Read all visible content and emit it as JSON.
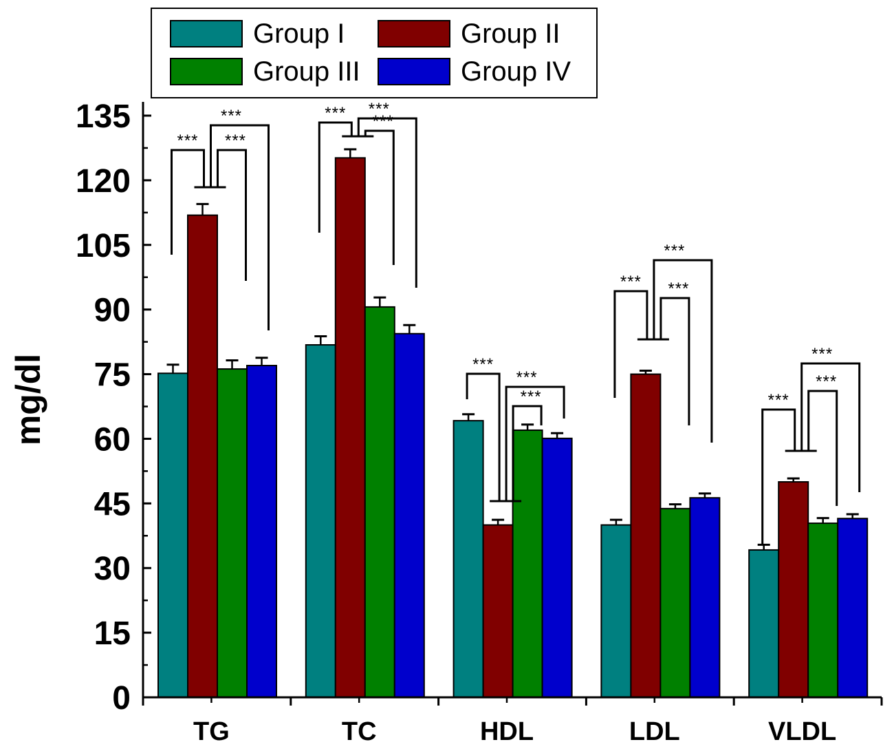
{
  "chart_data": {
    "type": "bar",
    "title": "",
    "xlabel": "",
    "ylabel": "mg/dl",
    "ylim": [
      0,
      135
    ],
    "yticks": [
      0,
      15,
      30,
      45,
      60,
      75,
      90,
      105,
      120,
      135
    ],
    "categories": [
      "TG",
      "TC",
      "HDL",
      "LDL",
      "VLDL"
    ],
    "series": [
      {
        "name": "Group I",
        "color": "#008080",
        "values": [
          75.2,
          81.8,
          64.2,
          40.0,
          34.2
        ],
        "errors": [
          2.0,
          2.0,
          1.5,
          1.2,
          1.2
        ]
      },
      {
        "name": "Group II",
        "color": "#800000",
        "values": [
          111.9,
          125.2,
          40.0,
          75.0,
          50.0
        ],
        "errors": [
          2.6,
          2.0,
          1.2,
          0.8,
          0.8
        ]
      },
      {
        "name": "Group III",
        "color": "#008000",
        "values": [
          76.2,
          90.6,
          62.0,
          43.8,
          40.4
        ],
        "errors": [
          2.0,
          2.2,
          1.3,
          1.0,
          1.2
        ]
      },
      {
        "name": "Group IV",
        "color": "#0000CC",
        "values": [
          77.0,
          84.4,
          60.1,
          46.3,
          41.5
        ],
        "errors": [
          1.8,
          2.0,
          1.2,
          1.0,
          1.0
        ]
      }
    ],
    "legend_position": "top",
    "significance_marker": "***",
    "significance": [
      {
        "category": "TG",
        "comparisons": [
          "Group I vs Group II",
          "Group II vs Group III",
          "Group II vs Group IV"
        ]
      },
      {
        "category": "TC",
        "comparisons": [
          "Group I vs Group II",
          "Group II vs Group III",
          "Group II vs Group IV"
        ]
      },
      {
        "category": "HDL",
        "comparisons": [
          "Group I vs Group II",
          "Group II vs Group III",
          "Group II vs Group IV"
        ]
      },
      {
        "category": "LDL",
        "comparisons": [
          "Group I vs Group II",
          "Group II vs Group III",
          "Group II vs Group IV"
        ]
      },
      {
        "category": "VLDL",
        "comparisons": [
          "Group I vs Group II",
          "Group II vs Group III",
          "Group II vs Group IV"
        ]
      }
    ]
  }
}
